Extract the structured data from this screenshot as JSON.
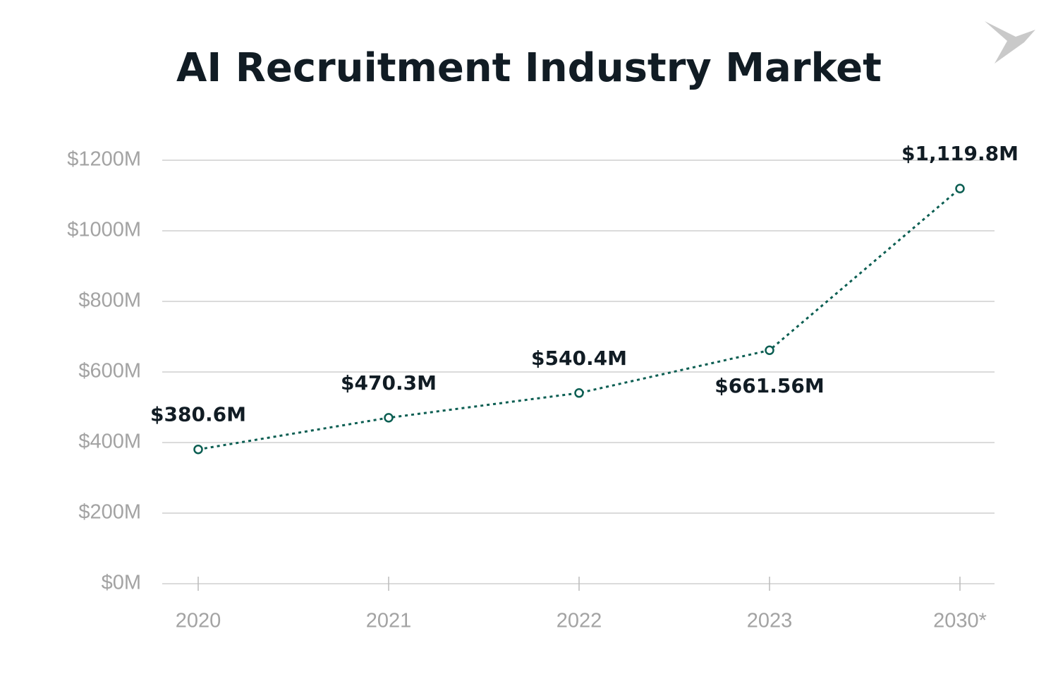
{
  "chart_data": {
    "type": "line",
    "title": "AI Recruitment Industry Market",
    "categories": [
      "2020",
      "2021",
      "2022",
      "2023",
      "2030*"
    ],
    "values": [
      380.6,
      470.3,
      540.4,
      661.56,
      1119.8
    ],
    "value_labels": [
      "$380.6M",
      "$470.3M",
      "$540.4M",
      "$661.56M",
      "$1,119.8M"
    ],
    "color": "#0b5e52",
    "ylim": [
      0,
      1200
    ],
    "yticks": [
      {
        "value": 0,
        "label": "$0M"
      },
      {
        "value": 200,
        "label": "$200M"
      },
      {
        "value": 400,
        "label": "$400M"
      },
      {
        "value": 600,
        "label": "$600M"
      },
      {
        "value": 800,
        "label": "$800M"
      },
      {
        "value": 1000,
        "label": "$1000M"
      },
      {
        "value": 1200,
        "label": "$1200M"
      }
    ],
    "grid": true
  }
}
